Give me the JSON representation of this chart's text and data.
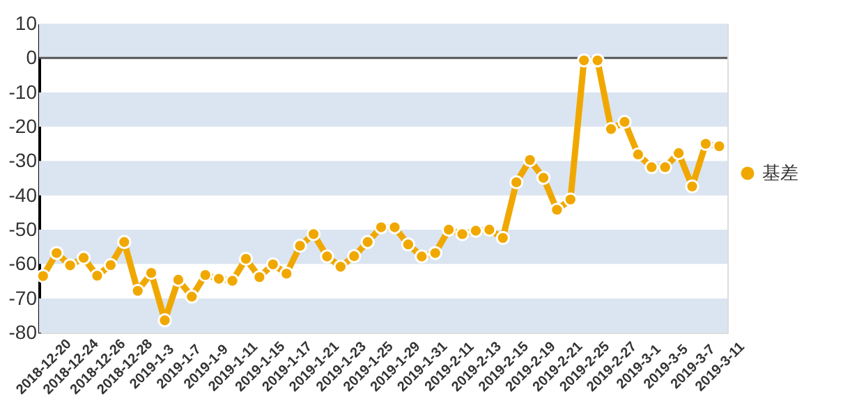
{
  "chart_data": {
    "type": "line",
    "categories": [
      "2018-12-20",
      null,
      "2018-12-24",
      null,
      "2018-12-26",
      null,
      "2018-12-28",
      null,
      "2019-1-3",
      null,
      "2019-1-7",
      null,
      "2019-1-9",
      null,
      "2019-1-11",
      null,
      "2019-1-15",
      null,
      "2019-1-17",
      null,
      "2019-1-21",
      null,
      "2019-1-23",
      null,
      "2019-1-25",
      null,
      "2019-1-29",
      null,
      "2019-1-31",
      null,
      "2019-2-11",
      null,
      "2019-2-13",
      null,
      "2019-2-15",
      null,
      "2019-2-19",
      null,
      "2019-2-21",
      null,
      "2019-2-25",
      null,
      "2019-2-27",
      null,
      "2019-3-1",
      null,
      "2019-3-5",
      null,
      "2019-3-7",
      null,
      "2019-3-11"
    ],
    "series": [
      {
        "name": "基差",
        "color": "#f0a800",
        "values": [
          -63.5,
          -56.8,
          -60.4,
          -58.2,
          -63.4,
          -60.3,
          -53.6,
          -67.8,
          -62.6,
          -76.4,
          -64.6,
          -69.5,
          -63.2,
          -64.3,
          -64.9,
          -58.5,
          -63.8,
          -60.1,
          -62.8,
          -54.7,
          -51.3,
          -57.8,
          -60.8,
          -57.7,
          -53.6,
          -49.3,
          -49.3,
          -54.3,
          -57.8,
          -56.8,
          -50.0,
          -51.3,
          -50.3,
          -50.0,
          -52.4,
          -36.2,
          -29.7,
          -34.9,
          -44.2,
          -41.2,
          -0.7,
          -0.7,
          -20.7,
          -18.6,
          -28.1,
          -31.8,
          -31.8,
          -27.7,
          -37.4,
          -25.0,
          -25.7
        ]
      }
    ],
    "ylim": [
      -80,
      10
    ],
    "yticks": [
      -80,
      -70,
      -60,
      -50,
      -40,
      -30,
      -20,
      -10,
      0,
      10
    ],
    "bands": [
      {
        "axis": "y",
        "from": -80,
        "to": -70,
        "color": "#dbe5f1"
      },
      {
        "axis": "y",
        "from": -60,
        "to": -50,
        "color": "#dbe5f1"
      },
      {
        "axis": "y",
        "from": -40,
        "to": -30,
        "color": "#dbe5f1"
      },
      {
        "axis": "y",
        "from": -20,
        "to": -10,
        "color": "#dbe5f1"
      },
      {
        "axis": "y",
        "from": 0,
        "to": 10,
        "color": "#dbe5f1"
      }
    ],
    "ref_lines": [
      {
        "axis": "y",
        "value": 0,
        "color": "#555555"
      }
    ],
    "grid": false,
    "legend": "right",
    "marker": "circle",
    "line_style": "solid"
  }
}
